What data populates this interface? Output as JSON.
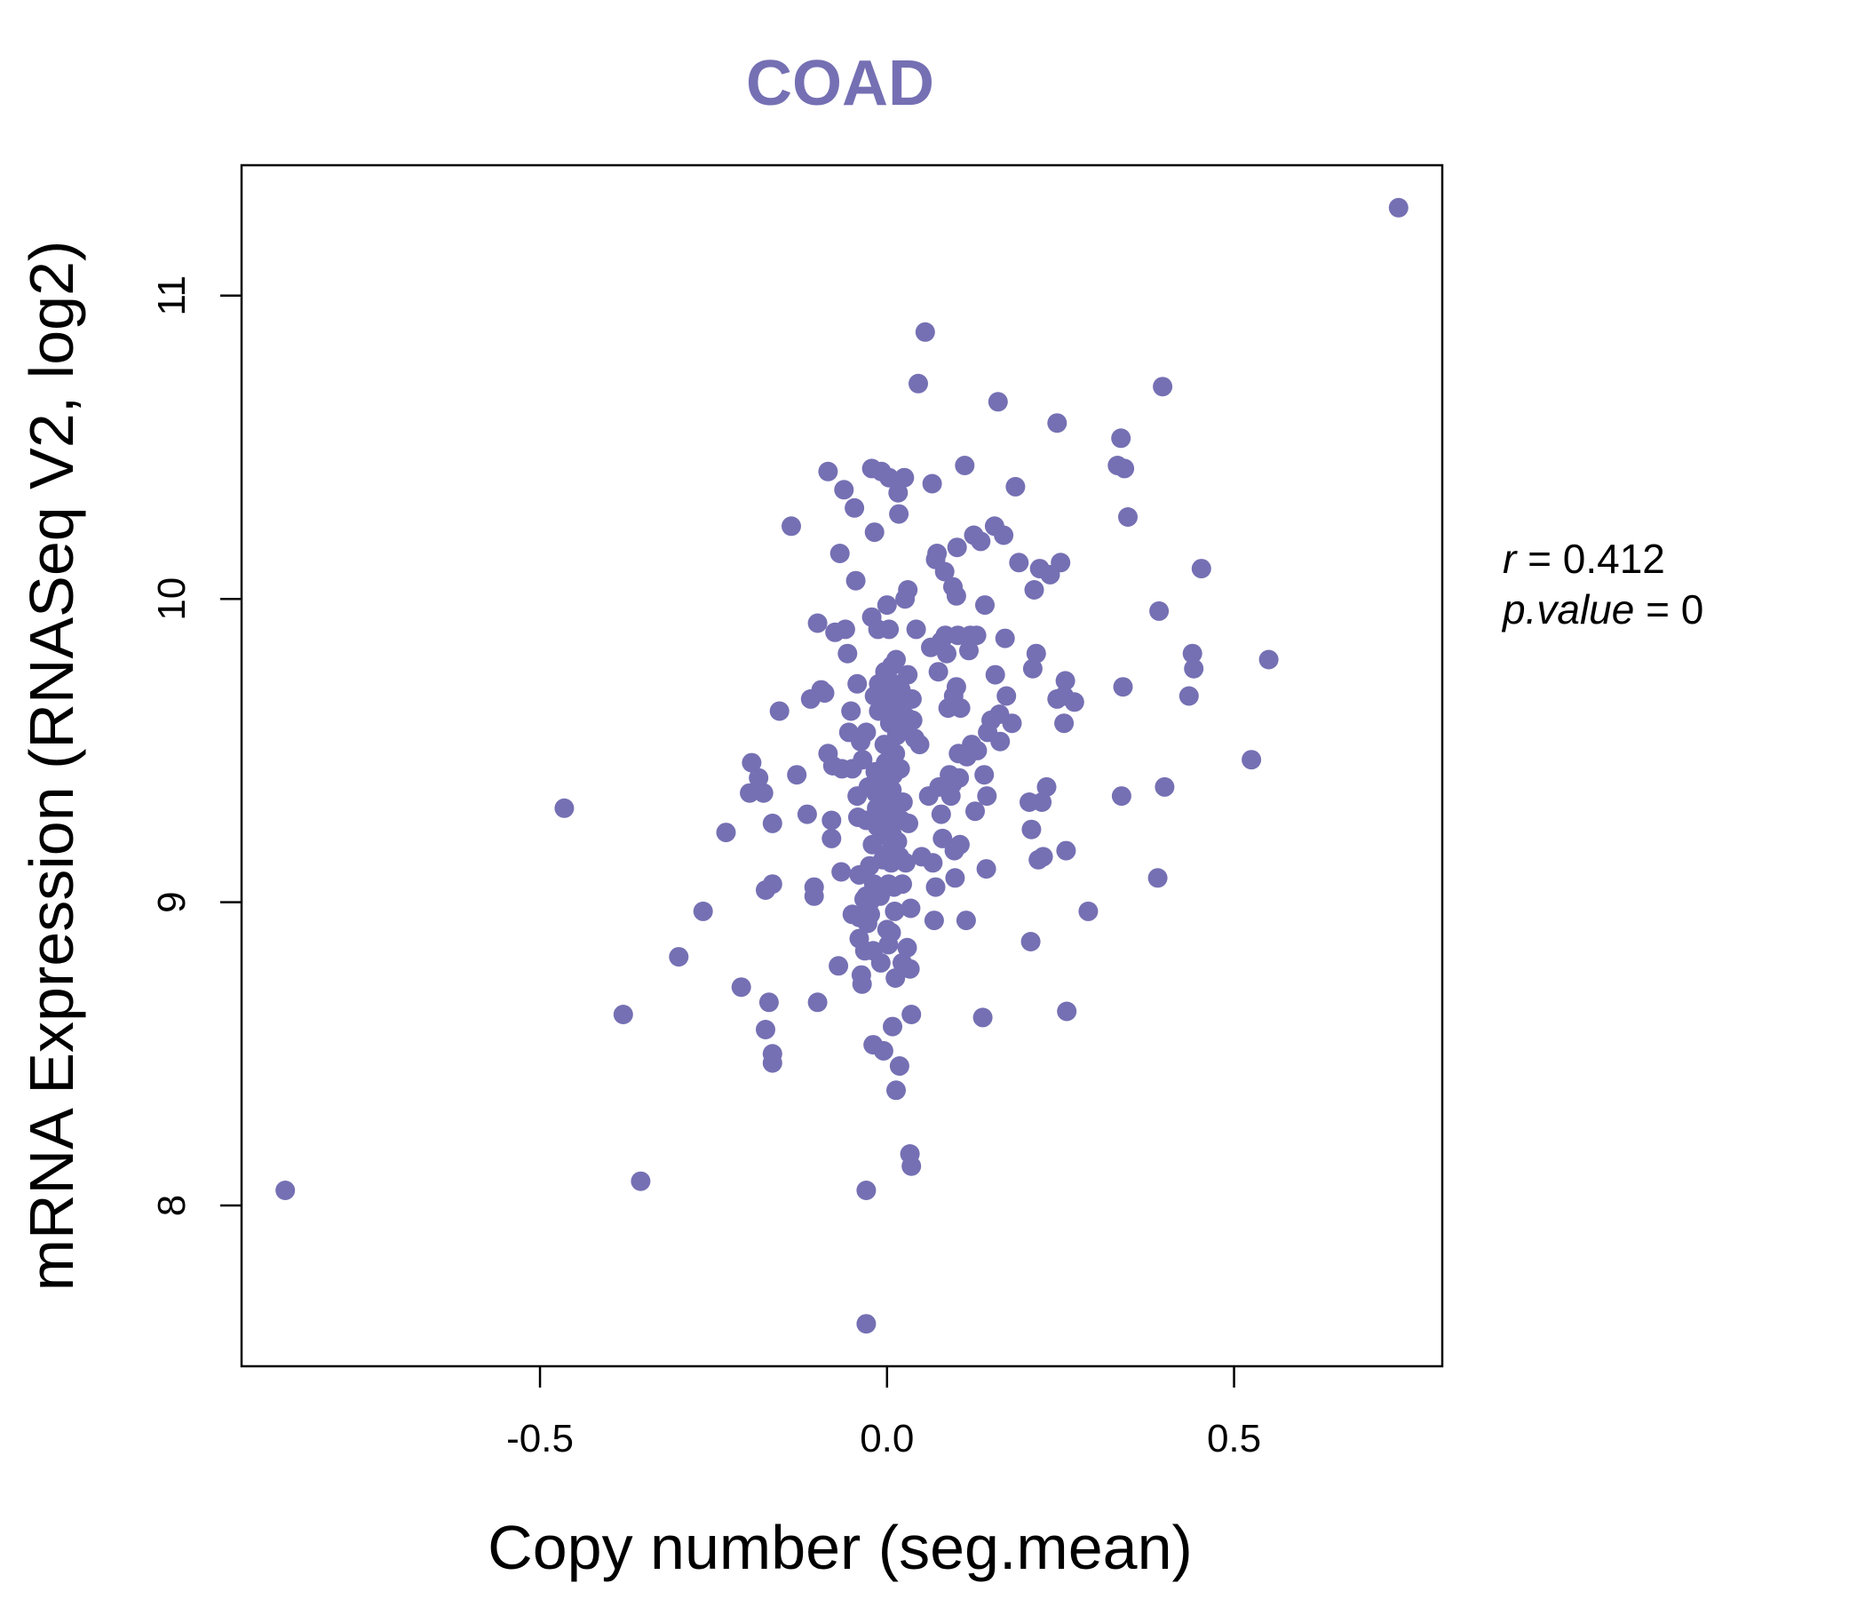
{
  "chart_data": {
    "type": "scatter",
    "title": "COAD",
    "xlabel": "Copy number (seg.mean)",
    "ylabel": "mRNA Expression (RNASeq V2, log2)",
    "xlim": [
      -0.93,
      0.8
    ],
    "ylim": [
      7.47,
      11.43
    ],
    "xticks": [
      -0.5,
      0.0,
      0.5
    ],
    "xtick_labels": [
      "-0.5",
      "0.0",
      "0.5"
    ],
    "yticks": [
      8,
      9,
      10,
      11
    ],
    "ytick_labels": [
      "8",
      "9",
      "10",
      "11"
    ],
    "point_color": "#7570b3",
    "stats": {
      "r_label": "r",
      "r_value": "0.412",
      "p_label": "p.value",
      "p_value": "0"
    },
    "points": [
      [
        -0.867,
        8.05
      ],
      [
        -0.465,
        9.31
      ],
      [
        -0.38,
        8.63
      ],
      [
        -0.355,
        8.08
      ],
      [
        -0.3,
        8.82
      ],
      [
        -0.265,
        8.97
      ],
      [
        -0.232,
        9.23
      ],
      [
        -0.21,
        8.72
      ],
      [
        -0.195,
        9.46
      ],
      [
        -0.198,
        9.36
      ],
      [
        -0.185,
        9.41
      ],
      [
        -0.178,
        9.36
      ],
      [
        -0.175,
        9.04
      ],
      [
        -0.17,
        8.67
      ],
      [
        -0.175,
        8.58
      ],
      [
        -0.165,
        8.5
      ],
      [
        -0.165,
        8.47
      ],
      [
        -0.165,
        9.26
      ],
      [
        -0.165,
        9.06
      ],
      [
        -0.155,
        9.63
      ],
      [
        -0.138,
        10.24
      ],
      [
        -0.13,
        9.42
      ],
      [
        -0.115,
        9.29
      ],
      [
        -0.11,
        9.67
      ],
      [
        -0.105,
        9.05
      ],
      [
        -0.105,
        9.02
      ],
      [
        -0.1,
        9.92
      ],
      [
        -0.1,
        8.67
      ],
      [
        -0.095,
        9.7
      ],
      [
        -0.09,
        9.69
      ],
      [
        -0.085,
        10.42
      ],
      [
        -0.085,
        9.49
      ],
      [
        -0.08,
        9.27
      ],
      [
        -0.08,
        9.21
      ],
      [
        -0.078,
        9.45
      ],
      [
        -0.075,
        9.89
      ],
      [
        -0.07,
        8.79
      ],
      [
        -0.068,
        10.15
      ],
      [
        -0.066,
        9.1
      ],
      [
        -0.065,
        9.44
      ],
      [
        -0.062,
        10.36
      ],
      [
        -0.06,
        9.9
      ],
      [
        -0.057,
        9.82
      ],
      [
        -0.055,
        9.56
      ],
      [
        -0.052,
        9.63
      ],
      [
        -0.05,
        9.44
      ],
      [
        -0.05,
        8.96
      ],
      [
        -0.047,
        10.3
      ],
      [
        -0.045,
        10.06
      ],
      [
        -0.043,
        9.72
      ],
      [
        -0.043,
        9.35
      ],
      [
        -0.042,
        9.28
      ],
      [
        -0.04,
        9.09
      ],
      [
        -0.04,
        8.95
      ],
      [
        -0.04,
        8.88
      ],
      [
        -0.038,
        9.53
      ],
      [
        -0.037,
        8.76
      ],
      [
        -0.036,
        8.73
      ],
      [
        -0.035,
        9.47
      ],
      [
        -0.033,
        9.01
      ],
      [
        -0.032,
        8.84
      ],
      [
        -0.03,
        9.56
      ],
      [
        -0.03,
        9.27
      ],
      [
        -0.03,
        9.02
      ],
      [
        -0.03,
        8.05
      ],
      [
        -0.03,
        7.61
      ],
      [
        -0.028,
        8.93
      ],
      [
        -0.027,
        9.38
      ],
      [
        -0.025,
        9.12
      ],
      [
        -0.025,
        9.0
      ],
      [
        -0.024,
        8.96
      ],
      [
        -0.022,
        10.43
      ],
      [
        -0.022,
        9.94
      ],
      [
        -0.021,
        9.19
      ],
      [
        -0.02,
        8.53
      ],
      [
        -0.02,
        8.84
      ],
      [
        -0.019,
        9.06
      ],
      [
        -0.018,
        10.22
      ],
      [
        -0.018,
        9.68
      ],
      [
        -0.017,
        9.43
      ],
      [
        -0.016,
        9.36
      ],
      [
        -0.015,
        9.31
      ],
      [
        -0.014,
        9.25
      ],
      [
        -0.013,
        9.9
      ],
      [
        -0.012,
        9.72
      ],
      [
        -0.012,
        9.63
      ],
      [
        -0.01,
        9.42
      ],
      [
        -0.01,
        9.02
      ],
      [
        -0.009,
        8.8
      ],
      [
        -0.008,
        10.42
      ],
      [
        -0.007,
        9.28
      ],
      [
        -0.006,
        9.14
      ],
      [
        -0.005,
        8.51
      ],
      [
        -0.005,
        9.66
      ],
      [
        -0.004,
        9.52
      ],
      [
        -0.003,
        9.76
      ],
      [
        -0.002,
        9.46
      ],
      [
        -0.002,
        9.22
      ],
      [
        0.0,
        9.98
      ],
      [
        0.0,
        9.41
      ],
      [
        0.0,
        9.35
      ],
      [
        0.0,
        9.16
      ],
      [
        0.0,
        8.91
      ],
      [
        0.001,
        9.29
      ],
      [
        0.002,
        9.06
      ],
      [
        0.002,
        8.86
      ],
      [
        0.003,
        10.4
      ],
      [
        0.003,
        9.9
      ],
      [
        0.004,
        9.59
      ],
      [
        0.005,
        9.68
      ],
      [
        0.005,
        9.26
      ],
      [
        0.006,
        9.13
      ],
      [
        0.006,
        8.9
      ],
      [
        0.007,
        9.78
      ],
      [
        0.007,
        9.37
      ],
      [
        0.008,
        9.22
      ],
      [
        0.008,
        8.59
      ],
      [
        0.009,
        9.63
      ],
      [
        0.009,
        9.42
      ],
      [
        0.01,
        9.72
      ],
      [
        0.01,
        9.05
      ],
      [
        0.011,
        8.97
      ],
      [
        0.012,
        9.49
      ],
      [
        0.012,
        8.75
      ],
      [
        0.013,
        9.8
      ],
      [
        0.013,
        8.38
      ],
      [
        0.014,
        9.55
      ],
      [
        0.015,
        9.33
      ],
      [
        0.015,
        9.2
      ],
      [
        0.016,
        10.35
      ],
      [
        0.017,
        10.28
      ],
      [
        0.017,
        9.66
      ],
      [
        0.018,
        9.15
      ],
      [
        0.018,
        8.46
      ],
      [
        0.019,
        9.44
      ],
      [
        0.02,
        9.7
      ],
      [
        0.021,
        9.27
      ],
      [
        0.022,
        9.06
      ],
      [
        0.022,
        8.8
      ],
      [
        0.023,
        9.33
      ],
      [
        0.024,
        9.57
      ],
      [
        0.025,
        10.4
      ],
      [
        0.026,
        10.0
      ],
      [
        0.027,
        9.13
      ],
      [
        0.028,
        9.61
      ],
      [
        0.029,
        8.85
      ],
      [
        0.03,
        10.03
      ],
      [
        0.03,
        9.75
      ],
      [
        0.031,
        9.26
      ],
      [
        0.033,
        8.17
      ],
      [
        0.033,
        8.78
      ],
      [
        0.034,
        8.98
      ],
      [
        0.035,
        8.13
      ],
      [
        0.035,
        8.63
      ],
      [
        0.036,
        9.67
      ],
      [
        0.037,
        9.6
      ],
      [
        0.04,
        9.54
      ],
      [
        0.042,
        9.9
      ],
      [
        0.045,
        10.71
      ],
      [
        0.047,
        9.52
      ],
      [
        0.05,
        9.15
      ],
      [
        0.055,
        10.88
      ],
      [
        0.06,
        9.35
      ],
      [
        0.063,
        9.84
      ],
      [
        0.065,
        10.38
      ],
      [
        0.066,
        9.13
      ],
      [
        0.068,
        8.94
      ],
      [
        0.07,
        9.05
      ],
      [
        0.07,
        10.13
      ],
      [
        0.072,
        10.15
      ],
      [
        0.074,
        9.76
      ],
      [
        0.075,
        9.38
      ],
      [
        0.078,
        9.86
      ],
      [
        0.078,
        9.29
      ],
      [
        0.08,
        9.21
      ],
      [
        0.083,
        10.09
      ],
      [
        0.084,
        9.88
      ],
      [
        0.086,
        9.82
      ],
      [
        0.088,
        9.64
      ],
      [
        0.09,
        9.42
      ],
      [
        0.092,
        9.35
      ],
      [
        0.094,
        9.39
      ],
      [
        0.095,
        10.04
      ],
      [
        0.096,
        9.68
      ],
      [
        0.097,
        9.17
      ],
      [
        0.098,
        9.08
      ],
      [
        0.1,
        10.01
      ],
      [
        0.1,
        9.71
      ],
      [
        0.101,
        10.17
      ],
      [
        0.102,
        9.88
      ],
      [
        0.103,
        9.49
      ],
      [
        0.104,
        9.41
      ],
      [
        0.105,
        9.19
      ],
      [
        0.106,
        9.64
      ],
      [
        0.112,
        10.44
      ],
      [
        0.114,
        8.94
      ],
      [
        0.115,
        9.48
      ],
      [
        0.118,
        9.83
      ],
      [
        0.12,
        9.88
      ],
      [
        0.122,
        9.52
      ],
      [
        0.125,
        10.21
      ],
      [
        0.127,
        9.3
      ],
      [
        0.129,
        9.88
      ],
      [
        0.13,
        9.5
      ],
      [
        0.135,
        10.19
      ],
      [
        0.138,
        8.62
      ],
      [
        0.14,
        9.42
      ],
      [
        0.141,
        9.98
      ],
      [
        0.143,
        9.11
      ],
      [
        0.144,
        9.35
      ],
      [
        0.145,
        9.56
      ],
      [
        0.15,
        9.6
      ],
      [
        0.155,
        10.24
      ],
      [
        0.156,
        9.75
      ],
      [
        0.16,
        10.65
      ],
      [
        0.162,
        9.62
      ],
      [
        0.163,
        9.53
      ],
      [
        0.168,
        10.21
      ],
      [
        0.17,
        9.87
      ],
      [
        0.172,
        9.68
      ],
      [
        0.18,
        9.59
      ],
      [
        0.185,
        10.37
      ],
      [
        0.19,
        10.12
      ],
      [
        0.205,
        9.33
      ],
      [
        0.207,
        8.87
      ],
      [
        0.208,
        9.24
      ],
      [
        0.21,
        9.77
      ],
      [
        0.212,
        10.03
      ],
      [
        0.215,
        9.82
      ],
      [
        0.218,
        9.14
      ],
      [
        0.22,
        10.1
      ],
      [
        0.223,
        9.33
      ],
      [
        0.225,
        9.15
      ],
      [
        0.23,
        9.38
      ],
      [
        0.235,
        10.08
      ],
      [
        0.245,
        10.58
      ],
      [
        0.245,
        9.67
      ],
      [
        0.25,
        10.12
      ],
      [
        0.255,
        9.68
      ],
      [
        0.255,
        9.59
      ],
      [
        0.257,
        9.73
      ],
      [
        0.258,
        9.17
      ],
      [
        0.259,
        8.64
      ],
      [
        0.27,
        9.66
      ],
      [
        0.29,
        8.97
      ],
      [
        0.332,
        10.44
      ],
      [
        0.337,
        10.53
      ],
      [
        0.338,
        9.35
      ],
      [
        0.34,
        9.71
      ],
      [
        0.342,
        10.43
      ],
      [
        0.347,
        10.27
      ],
      [
        0.39,
        9.08
      ],
      [
        0.392,
        9.96
      ],
      [
        0.397,
        10.7
      ],
      [
        0.4,
        9.38
      ],
      [
        0.435,
        9.68
      ],
      [
        0.44,
        9.82
      ],
      [
        0.442,
        9.77
      ],
      [
        0.453,
        10.1
      ],
      [
        0.525,
        9.47
      ],
      [
        0.55,
        9.8
      ],
      [
        0.737,
        11.29
      ]
    ]
  }
}
